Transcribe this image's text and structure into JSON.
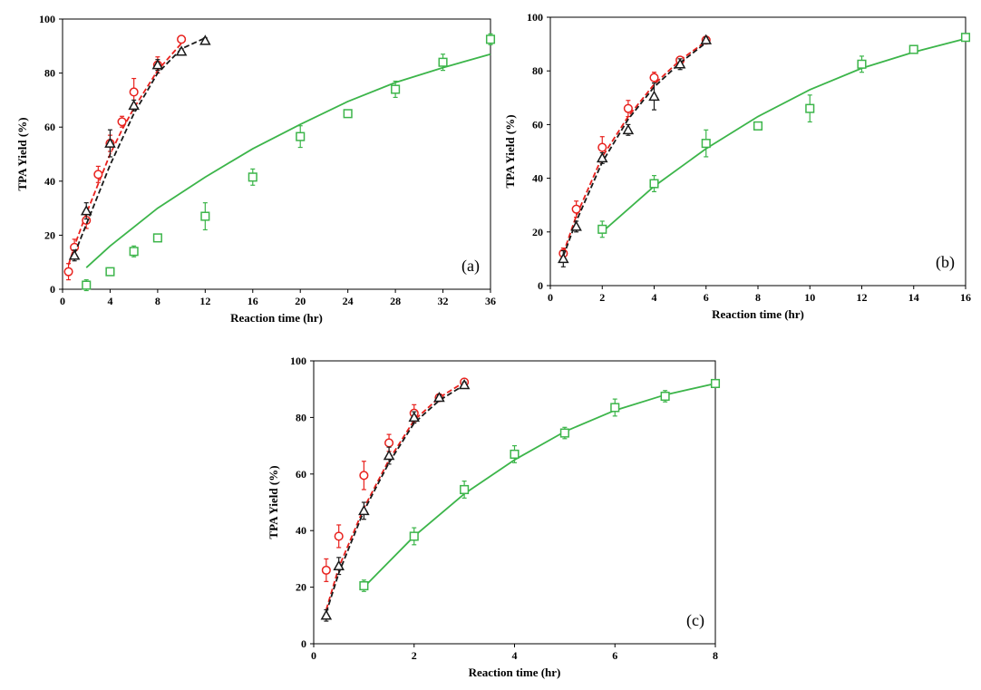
{
  "chart_data": [
    {
      "type": "scatter",
      "panel_label": "(a)",
      "xlabel": "Reaction time (hr)",
      "ylabel": "TPA Yield (%)",
      "xlim": [
        0,
        36
      ],
      "ylim": [
        0,
        100
      ],
      "xticks": [
        0,
        4,
        8,
        12,
        16,
        20,
        24,
        28,
        32,
        36
      ],
      "yticks": [
        0,
        20,
        40,
        60,
        80,
        100
      ],
      "grid": false,
      "series": [
        {
          "marker": "circle",
          "color": "#e8211d",
          "line_style": "dashed",
          "x": [
            0.5,
            1,
            2,
            3,
            4,
            5,
            6,
            8,
            10
          ],
          "y": [
            6.5,
            15.5,
            25.5,
            42.5,
            54,
            62,
            73,
            83,
            92.5
          ],
          "err": [
            3,
            3,
            3,
            3,
            3,
            2,
            5,
            3,
            0
          ],
          "fit_x": [
            0.5,
            1,
            2,
            3,
            4,
            5,
            6,
            8,
            10
          ],
          "fit_y": [
            9,
            16,
            28,
            39,
            50,
            59,
            67,
            81,
            91
          ]
        },
        {
          "marker": "triangle",
          "color": "#1a1a1a",
          "line_style": "dashed",
          "x": [
            1,
            2,
            4,
            6,
            8,
            10,
            12
          ],
          "y": [
            12.5,
            29,
            54,
            68,
            83,
            88,
            92
          ],
          "err": [
            2,
            3,
            5,
            2,
            2,
            1,
            1
          ],
          "fit_x": [
            1,
            2,
            4,
            6,
            8,
            10,
            12
          ],
          "fit_y": [
            13,
            24,
            46,
            65,
            80,
            89,
            93
          ]
        },
        {
          "marker": "square",
          "color": "#3cb54a",
          "line_style": "solid",
          "x": [
            2,
            4,
            6,
            8,
            12,
            16,
            20,
            24,
            28,
            32,
            36
          ],
          "y": [
            1.5,
            6.5,
            14,
            19,
            27,
            41.5,
            56.5,
            65,
            74,
            84,
            92.5
          ],
          "err": [
            2,
            1,
            2,
            1,
            5,
            3,
            4,
            1,
            3,
            3,
            2
          ],
          "fit_x": [
            2,
            4,
            8,
            12,
            16,
            20,
            24,
            28,
            32,
            36
          ],
          "fit_y": [
            8,
            16,
            30,
            41.5,
            52,
            61,
            69.5,
            76.5,
            82,
            87
          ]
        }
      ]
    },
    {
      "type": "scatter",
      "panel_label": "(b)",
      "xlabel": "Reaction time (hr)",
      "ylabel": "TPA Yield (%)",
      "xlim": [
        0,
        16
      ],
      "ylim": [
        0,
        100
      ],
      "xticks": [
        0,
        2,
        4,
        6,
        8,
        10,
        12,
        14,
        16
      ],
      "yticks": [
        0,
        20,
        40,
        60,
        80,
        100
      ],
      "grid": false,
      "series": [
        {
          "marker": "circle",
          "color": "#e8211d",
          "line_style": "dashed",
          "x": [
            0.5,
            1,
            2,
            3,
            4,
            5,
            6
          ],
          "y": [
            12,
            28.5,
            51.5,
            66,
            77.5,
            84,
            91.5
          ],
          "err": [
            2,
            3,
            4,
            3,
            2,
            1,
            1
          ],
          "fit_x": [
            0.5,
            1,
            2,
            3,
            4,
            5,
            6
          ],
          "fit_y": [
            12,
            26,
            48,
            63,
            75,
            84,
            91
          ]
        },
        {
          "marker": "triangle",
          "color": "#1a1a1a",
          "line_style": "dashed",
          "x": [
            0.5,
            1,
            2,
            3,
            4,
            5,
            6
          ],
          "y": [
            10,
            22,
            47.5,
            58,
            70.5,
            82.5,
            91.5
          ],
          "err": [
            3,
            2,
            2,
            2,
            5,
            2,
            1
          ],
          "fit_x": [
            0.5,
            1,
            2,
            3,
            4,
            5,
            6
          ],
          "fit_y": [
            11,
            24,
            46,
            62,
            74,
            83,
            90.5
          ]
        },
        {
          "marker": "square",
          "color": "#3cb54a",
          "line_style": "solid",
          "x": [
            2,
            4,
            6,
            8,
            10,
            12,
            14,
            16
          ],
          "y": [
            21,
            38,
            53,
            59.5,
            66,
            82.5,
            88,
            92.5
          ],
          "err": [
            3,
            3,
            5,
            1,
            5,
            3,
            1,
            1
          ],
          "fit_x": [
            2,
            4,
            6,
            8,
            10,
            12,
            14,
            16
          ],
          "fit_y": [
            20,
            37,
            51,
            63,
            73,
            81,
            87,
            92
          ]
        }
      ]
    },
    {
      "type": "scatter",
      "panel_label": "(c)",
      "xlabel": "Reaction time (hr)",
      "ylabel": "TPA Yield (%)",
      "xlim": [
        0,
        8
      ],
      "ylim": [
        0,
        100
      ],
      "xticks": [
        0,
        2,
        4,
        6,
        8
      ],
      "yticks": [
        0,
        20,
        40,
        60,
        80,
        100
      ],
      "grid": false,
      "series": [
        {
          "marker": "circle",
          "color": "#e8211d",
          "line_style": "dashed",
          "x": [
            0.25,
            0.5,
            1,
            1.5,
            2,
            2.5,
            3
          ],
          "y": [
            26,
            38,
            59.5,
            71,
            81.5,
            87,
            92.5
          ],
          "err": [
            4,
            4,
            5,
            3,
            3,
            1,
            1
          ],
          "fit_x": [
            0.25,
            0.5,
            1,
            1.5,
            2,
            2.5,
            3
          ],
          "fit_y": [
            12,
            27,
            48,
            65,
            79,
            87,
            92.5
          ]
        },
        {
          "marker": "triangle",
          "color": "#1a1a1a",
          "line_style": "dashed",
          "x": [
            0.25,
            0.5,
            1,
            1.5,
            2,
            2.5,
            3
          ],
          "y": [
            10,
            27.5,
            47,
            66.5,
            80,
            87,
            91.5
          ],
          "err": [
            2,
            3,
            3,
            3,
            2,
            1,
            1
          ],
          "fit_x": [
            0.25,
            0.5,
            1,
            1.5,
            2,
            2.5,
            3
          ],
          "fit_y": [
            11,
            25,
            47,
            64,
            78,
            86,
            91.5
          ]
        },
        {
          "marker": "square",
          "color": "#3cb54a",
          "line_style": "solid",
          "x": [
            1,
            2,
            3,
            4,
            5,
            6,
            7,
            8
          ],
          "y": [
            20.5,
            38,
            54.5,
            67,
            74.5,
            83.5,
            87.5,
            92
          ],
          "err": [
            2,
            3,
            3,
            3,
            2,
            3,
            2,
            1
          ],
          "fit_x": [
            1,
            2,
            3,
            4,
            5,
            6,
            7,
            8
          ],
          "fit_y": [
            20,
            38,
            53,
            65,
            75,
            82.5,
            88,
            92
          ]
        }
      ]
    }
  ]
}
